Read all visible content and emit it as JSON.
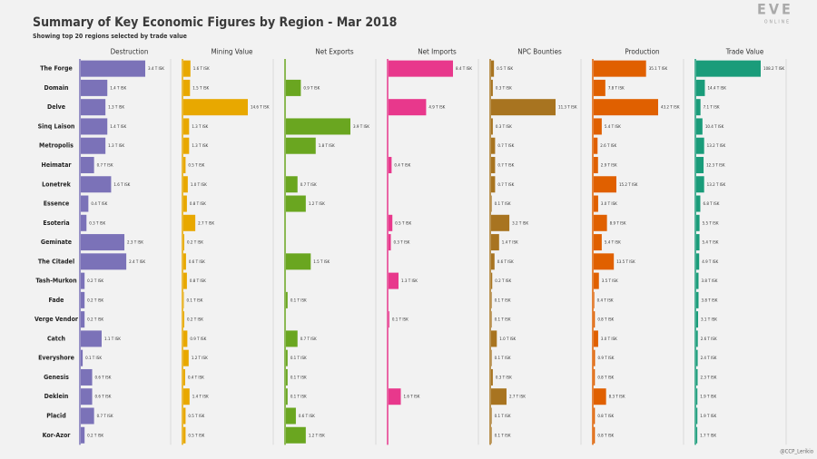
{
  "chart_data": {
    "type": "bar",
    "title": "Summary of Key Economic Figures by Region - Mar 2018",
    "subtitle": "Showing top 20 regions selected by trade value",
    "logo": "EVE",
    "logo_sub": "ONLINE",
    "credit": "@CCP_Lerikio",
    "categories": [
      "The Forge",
      "Domain",
      "Delve",
      "Sinq Laison",
      "Metropolis",
      "Heimatar",
      "Lonetrek",
      "Essence",
      "Esoteria",
      "Geminate",
      "The Citadel",
      "Tash-Murkon",
      "Fade",
      "Verge Vendor",
      "Catch",
      "Everyshore",
      "Genesis",
      "Deklein",
      "Placid",
      "Kor-Azor"
    ],
    "series": [
      {
        "name": "Destruction",
        "color": "#7b72b8",
        "values": [
          3.4,
          1.4,
          1.3,
          1.4,
          1.3,
          0.7,
          1.6,
          0.4,
          0.3,
          2.3,
          2.4,
          0.2,
          0.2,
          0.2,
          1.1,
          0.1,
          0.6,
          0.6,
          0.7,
          0.2
        ],
        "value_labels": [
          "3.4 T ISK",
          "1.4 T ISK",
          "1.3 T ISK",
          "1.4 T ISK",
          "1.3 T ISK",
          "0.7 T ISK",
          "1.6 T ISK",
          "0.4 T ISK",
          "0.3 T ISK",
          "2.3 T ISK",
          "2.4 T ISK",
          "0.2 T ISK",
          "0.2 T ISK",
          "0.2 T ISK",
          "1.1 T ISK",
          "0.1 T ISK",
          "0.6 T ISK",
          "0.6 T ISK",
          "0.7 T ISK",
          "0.2 T ISK"
        ]
      },
      {
        "name": "Mining Value",
        "color": "#e8a800",
        "values": [
          1.6,
          1.5,
          14.6,
          1.3,
          1.3,
          0.5,
          1.0,
          0.8,
          2.7,
          0.2,
          0.6,
          0.8,
          0.1,
          0.2,
          0.9,
          1.2,
          0.4,
          1.4,
          0.5,
          0.5
        ],
        "value_labels": [
          "1.6 T ISK",
          "1.5 T ISK",
          "14.6 T ISK",
          "1.3 T ISK",
          "1.3 T ISK",
          "0.5 T ISK",
          "1.0 T ISK",
          "0.8 T ISK",
          "2.7 T ISK",
          "0.2 T ISK",
          "0.6 T ISK",
          "0.8 T ISK",
          "0.1 T ISK",
          "0.2 T ISK",
          "0.9 T ISK",
          "1.2 T ISK",
          "0.4 T ISK",
          "1.4 T ISK",
          "0.5 T ISK",
          "0.5 T ISK"
        ]
      },
      {
        "name": "Net Exports",
        "color": "#6aa620",
        "values": [
          null,
          0.9,
          null,
          3.9,
          1.8,
          null,
          0.7,
          1.2,
          null,
          null,
          1.5,
          null,
          0.1,
          null,
          0.7,
          0.1,
          0.1,
          0.1,
          0.6,
          1.2
        ],
        "value_labels": [
          null,
          "0.9 T ISK",
          null,
          "3.9 T ISK",
          "1.8 T ISK",
          null,
          "0.7 T ISK",
          "1.2 T ISK",
          null,
          null,
          "1.5 T ISK",
          null,
          "0.1 T ISK",
          null,
          "0.7 T ISK",
          "0.1 T ISK",
          "0.1 T ISK",
          "0.1 T ISK",
          "0.6 T ISK",
          "1.2 T ISK"
        ]
      },
      {
        "name": "Net Imports",
        "color": "#e8388c",
        "values": [
          8.4,
          null,
          4.9,
          null,
          null,
          0.4,
          null,
          null,
          0.5,
          0.3,
          null,
          1.3,
          null,
          0.1,
          null,
          null,
          null,
          1.6,
          null,
          null
        ],
        "value_labels": [
          "8.4 T ISK",
          null,
          "4.9 T ISK",
          null,
          null,
          "0.4 T ISK",
          null,
          null,
          "0.5 T ISK",
          "0.3 T ISK",
          null,
          "1.3 T ISK",
          null,
          "0.1 T ISK",
          null,
          null,
          null,
          "1.6 T ISK",
          null,
          null
        ]
      },
      {
        "name": "NPC Bounties",
        "color": "#a87420",
        "values": [
          0.5,
          0.3,
          11.3,
          0.3,
          0.7,
          0.7,
          0.7,
          0.1,
          3.2,
          1.4,
          0.6,
          0.2,
          0.1,
          0.1,
          1.0,
          0.1,
          0.3,
          2.7,
          0.1,
          0.1
        ],
        "value_labels": [
          "0.5 T ISK",
          "0.3 T ISK",
          "11.3 T ISK",
          "0.3 T ISK",
          "0.7 T ISK",
          "0.7 T ISK",
          "0.7 T ISK",
          "0.1 T ISK",
          "3.2 T ISK",
          "1.4 T ISK",
          "0.6 T ISK",
          "0.2 T ISK",
          "0.1 T ISK",
          "0.1 T ISK",
          "1.0 T ISK",
          "0.1 T ISK",
          "0.3 T ISK",
          "2.7 T ISK",
          "0.1 T ISK",
          "0.1 T ISK"
        ]
      },
      {
        "name": "Production",
        "color": "#e06000",
        "values": [
          35.1,
          7.8,
          43.2,
          5.4,
          2.6,
          2.9,
          15.2,
          3.0,
          8.9,
          5.4,
          13.5,
          3.5,
          0.4,
          0.8,
          3.0,
          0.9,
          0.8,
          8.3,
          0.8,
          0.8
        ],
        "value_labels": [
          "35.1 T ISK",
          "7.8 T ISK",
          "43.2 T ISK",
          "5.4 T ISK",
          "2.6 T ISK",
          "2.9 T ISK",
          "15.2 T ISK",
          "3.0 T ISK",
          "8.9 T ISK",
          "5.4 T ISK",
          "13.5 T ISK",
          "3.5 T ISK",
          "0.4 T ISK",
          "0.8 T ISK",
          "3.0 T ISK",
          "0.9 T ISK",
          "0.8 T ISK",
          "8.3 T ISK",
          "0.8 T ISK",
          "0.8 T ISK"
        ]
      },
      {
        "name": "Trade Value",
        "color": "#1a9c7a",
        "values": [
          108.2,
          14.4,
          7.1,
          10.4,
          13.2,
          12.3,
          13.2,
          6.8,
          5.5,
          5.4,
          4.9,
          3.8,
          3.8,
          3.1,
          2.6,
          2.4,
          2.3,
          1.9,
          1.9,
          1.7
        ],
        "value_labels": [
          "108.2 T ISK",
          "14.4 T ISK",
          "7.1 T ISK",
          "10.4 T ISK",
          "13.2 T ISK",
          "12.3 T ISK",
          "13.2 T ISK",
          "6.8 T ISK",
          "5.5 T ISK",
          "5.4 T ISK",
          "4.9 T ISK",
          "3.8 T ISK",
          "3.8 T ISK",
          "3.1 T ISK",
          "2.6 T ISK",
          "2.4 T ISK",
          "2.3 T ISK",
          "1.9 T ISK",
          "1.9 T ISK",
          "1.7 T ISK"
        ]
      }
    ]
  }
}
